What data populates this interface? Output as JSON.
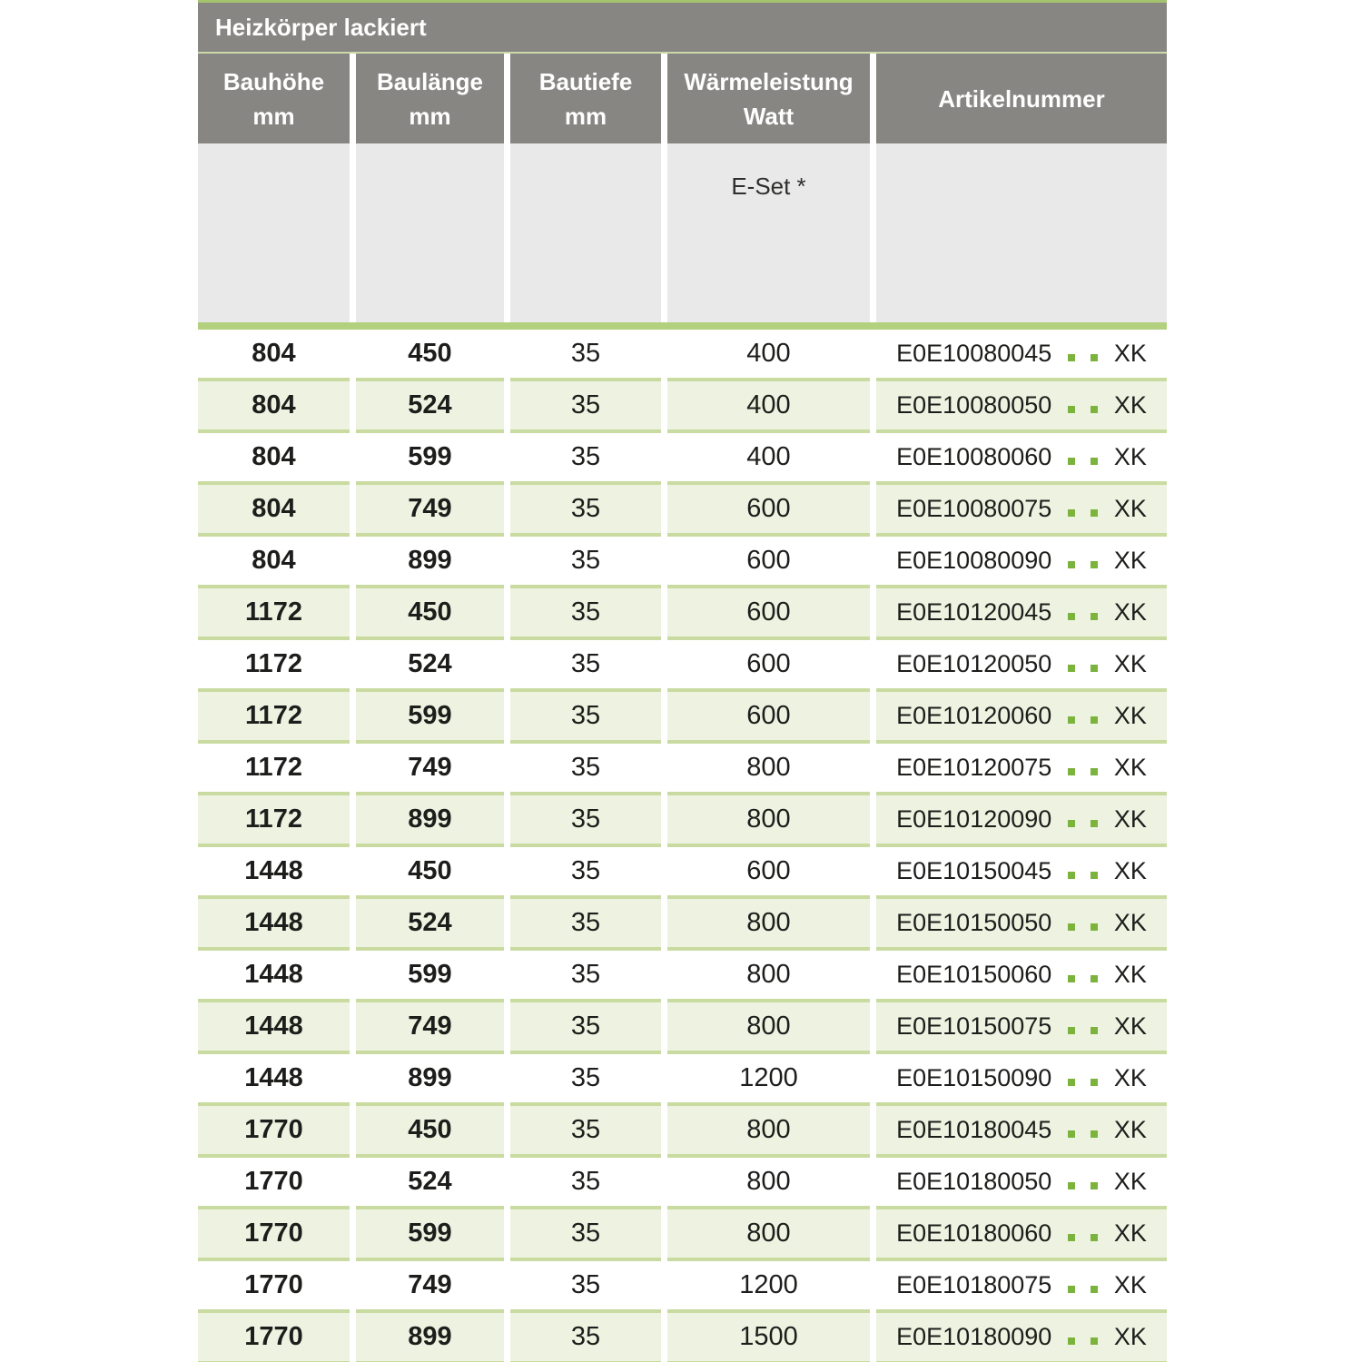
{
  "table": {
    "title": "Heizkörper lackiert",
    "columns": [
      {
        "label": "Bauhöhe",
        "sub": "mm"
      },
      {
        "label": "Baulänge",
        "sub": "mm"
      },
      {
        "label": "Bautiefe",
        "sub": "mm"
      },
      {
        "label": "Wärmeleistung",
        "sub": "Watt"
      },
      {
        "label": "Artikelnummer",
        "sub": ""
      }
    ],
    "subheader": {
      "eset_label": "E-Set *"
    },
    "rows": [
      {
        "bauhoehe": "804",
        "baulaenge": "450",
        "bautiefe": "35",
        "watt": "400",
        "art_code": "E0E10080045",
        "art_suffix": "XK"
      },
      {
        "bauhoehe": "804",
        "baulaenge": "524",
        "bautiefe": "35",
        "watt": "400",
        "art_code": "E0E10080050",
        "art_suffix": "XK"
      },
      {
        "bauhoehe": "804",
        "baulaenge": "599",
        "bautiefe": "35",
        "watt": "400",
        "art_code": "E0E10080060",
        "art_suffix": "XK"
      },
      {
        "bauhoehe": "804",
        "baulaenge": "749",
        "bautiefe": "35",
        "watt": "600",
        "art_code": "E0E10080075",
        "art_suffix": "XK"
      },
      {
        "bauhoehe": "804",
        "baulaenge": "899",
        "bautiefe": "35",
        "watt": "600",
        "art_code": "E0E10080090",
        "art_suffix": "XK"
      },
      {
        "bauhoehe": "1172",
        "baulaenge": "450",
        "bautiefe": "35",
        "watt": "600",
        "art_code": "E0E10120045",
        "art_suffix": "XK"
      },
      {
        "bauhoehe": "1172",
        "baulaenge": "524",
        "bautiefe": "35",
        "watt": "600",
        "art_code": "E0E10120050",
        "art_suffix": "XK"
      },
      {
        "bauhoehe": "1172",
        "baulaenge": "599",
        "bautiefe": "35",
        "watt": "600",
        "art_code": "E0E10120060",
        "art_suffix": "XK"
      },
      {
        "bauhoehe": "1172",
        "baulaenge": "749",
        "bautiefe": "35",
        "watt": "800",
        "art_code": "E0E10120075",
        "art_suffix": "XK"
      },
      {
        "bauhoehe": "1172",
        "baulaenge": "899",
        "bautiefe": "35",
        "watt": "800",
        "art_code": "E0E10120090",
        "art_suffix": "XK"
      },
      {
        "bauhoehe": "1448",
        "baulaenge": "450",
        "bautiefe": "35",
        "watt": "600",
        "art_code": "E0E10150045",
        "art_suffix": "XK"
      },
      {
        "bauhoehe": "1448",
        "baulaenge": "524",
        "bautiefe": "35",
        "watt": "800",
        "art_code": "E0E10150050",
        "art_suffix": "XK"
      },
      {
        "bauhoehe": "1448",
        "baulaenge": "599",
        "bautiefe": "35",
        "watt": "800",
        "art_code": "E0E10150060",
        "art_suffix": "XK"
      },
      {
        "bauhoehe": "1448",
        "baulaenge": "749",
        "bautiefe": "35",
        "watt": "800",
        "art_code": "E0E10150075",
        "art_suffix": "XK"
      },
      {
        "bauhoehe": "1448",
        "baulaenge": "899",
        "bautiefe": "35",
        "watt": "1200",
        "art_code": "E0E10150090",
        "art_suffix": "XK"
      },
      {
        "bauhoehe": "1770",
        "baulaenge": "450",
        "bautiefe": "35",
        "watt": "800",
        "art_code": "E0E10180045",
        "art_suffix": "XK"
      },
      {
        "bauhoehe": "1770",
        "baulaenge": "524",
        "bautiefe": "35",
        "watt": "800",
        "art_code": "E0E10180050",
        "art_suffix": "XK"
      },
      {
        "bauhoehe": "1770",
        "baulaenge": "599",
        "bautiefe": "35",
        "watt": "800",
        "art_code": "E0E10180060",
        "art_suffix": "XK"
      },
      {
        "bauhoehe": "1770",
        "baulaenge": "749",
        "bautiefe": "35",
        "watt": "1200",
        "art_code": "E0E10180075",
        "art_suffix": "XK"
      },
      {
        "bauhoehe": "1770",
        "baulaenge": "899",
        "bautiefe": "35",
        "watt": "1500",
        "art_code": "E0E10180090",
        "art_suffix": "XK"
      }
    ],
    "colors": {
      "header_gray": "#878682",
      "subheader_gray": "#e9e9e9",
      "top_border_green": "#a5c36d",
      "title_underline_green": "#cbd8a9",
      "thick_bar_green": "#b3d07f",
      "row_separator_green": "#c9dba0",
      "alt_row_green": "#eef3e1",
      "placeholder_dot_green": "#7cb33d",
      "header_text": "#ffffff",
      "body_text": "#1d1d1b"
    }
  }
}
